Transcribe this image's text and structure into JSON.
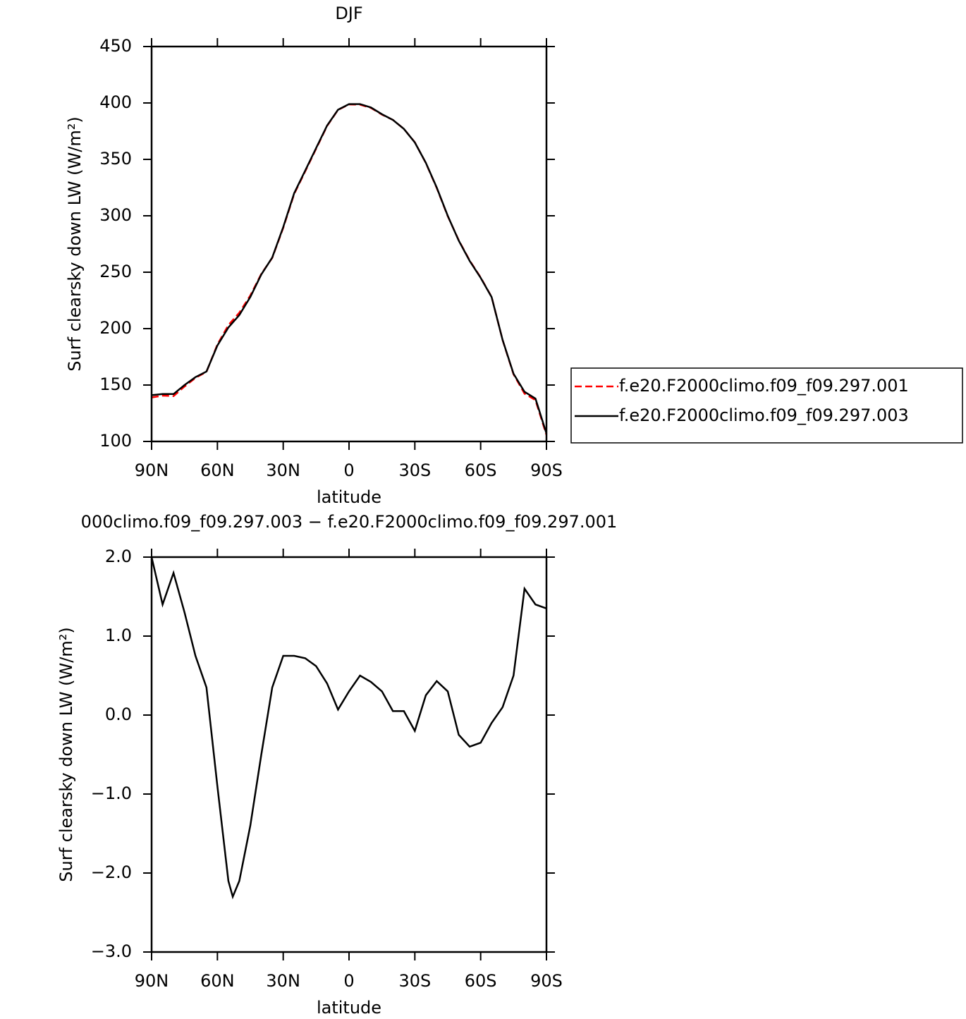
{
  "chart_data": [
    {
      "type": "line",
      "title": "DJF",
      "xlabel": "latitude",
      "ylabel": "Surf clearsky down LW (W/m²)",
      "x": [
        90,
        85,
        80,
        75,
        70,
        65,
        60,
        55,
        50,
        45,
        40,
        35,
        30,
        25,
        20,
        15,
        10,
        5,
        0,
        -5,
        -10,
        -15,
        -20,
        -25,
        -30,
        -35,
        -40,
        -45,
        -50,
        -55,
        -60,
        -65,
        -70,
        -75,
        -80,
        -85,
        -90
      ],
      "series": [
        {
          "name": "f.e20.F2000climo.f09_f09.297.001",
          "color": "#ff0000",
          "line_style": "dashed",
          "values": [
            139,
            140.6,
            140.2,
            148.7,
            156.3,
            161.7,
            185.9,
            203.1,
            214.1,
            229.4,
            248.5,
            262.7,
            289.3,
            319.3,
            339.3,
            359.4,
            379.6,
            393.9,
            398.7,
            398.5,
            395.6,
            389.7,
            385,
            377,
            365.2,
            346.8,
            324.6,
            299.7,
            278.3,
            260.4,
            245.4,
            228.1,
            189.9,
            159.5,
            142.4,
            136.6,
            105.7
          ]
        },
        {
          "name": "f.e20.F2000climo.f09_f09.297.003",
          "color": "#000000",
          "line_style": "solid",
          "values": [
            141,
            142,
            142,
            150,
            157,
            162,
            185,
            201,
            212,
            228,
            248,
            263,
            290,
            320,
            340,
            360,
            380,
            394,
            399,
            399,
            396,
            390,
            385,
            377,
            365,
            347,
            325,
            300,
            278,
            260,
            245,
            228,
            190,
            160,
            144,
            138,
            107
          ]
        }
      ],
      "xlim": [
        90,
        -90
      ],
      "xticks": [
        {
          "value": 90,
          "label": "90N"
        },
        {
          "value": 60,
          "label": "60N"
        },
        {
          "value": 30,
          "label": "30N"
        },
        0,
        {
          "value": -30,
          "label": "30S"
        },
        {
          "value": -60,
          "label": "60S"
        },
        {
          "value": -90,
          "label": "90S"
        }
      ],
      "ylim": [
        100,
        450
      ],
      "yticks": [
        100,
        150,
        200,
        250,
        300,
        350,
        400,
        450
      ],
      "legend": "right"
    },
    {
      "type": "line",
      "title": "000climo.f09_f09.297.003 − f.e20.F2000climo.f09_f09.297.001",
      "xlabel": "latitude",
      "ylabel": "Surf clearsky down LW (W/m²)",
      "x": [
        90,
        85,
        80,
        75,
        70,
        65,
        60,
        55,
        53,
        50,
        45,
        40,
        35,
        30,
        25,
        20,
        15,
        10,
        5,
        0,
        -5,
        -10,
        -15,
        -20,
        -25,
        -30,
        -35,
        -40,
        -45,
        -50,
        -55,
        -60,
        -65,
        -70,
        -75,
        -80,
        -85,
        -90
      ],
      "series": [
        {
          "color": "#000000",
          "line_style": "solid",
          "values": [
            2.0,
            1.4,
            1.8,
            1.3,
            0.75,
            0.35,
            -0.9,
            -2.1,
            -2.3,
            -2.1,
            -1.4,
            -0.5,
            0.35,
            0.75,
            0.75,
            0.72,
            0.62,
            0.4,
            0.07,
            0.3,
            0.5,
            0.42,
            0.3,
            0.05,
            0.05,
            -0.2,
            0.25,
            0.43,
            0.3,
            -0.25,
            -0.4,
            -0.35,
            -0.1,
            0.1,
            0.5,
            1.6,
            1.4,
            1.35
          ]
        }
      ],
      "xlim": [
        90,
        -90
      ],
      "xticks": [
        {
          "value": 90,
          "label": "90N"
        },
        {
          "value": 60,
          "label": "60N"
        },
        {
          "value": 30,
          "label": "30N"
        },
        0,
        {
          "value": -30,
          "label": "30S"
        },
        {
          "value": -60,
          "label": "60S"
        },
        {
          "value": -90,
          "label": "90S"
        }
      ],
      "ylim": [
        -3,
        2
      ],
      "yticks": [
        {
          "value": -3,
          "label": "−3.0"
        },
        {
          "value": -2,
          "label": "−2.0"
        },
        {
          "value": -1,
          "label": "−1.0"
        },
        {
          "value": 0,
          "label": "0.0"
        },
        {
          "value": 1,
          "label": "1.0"
        },
        {
          "value": 2,
          "label": "2.0"
        }
      ]
    }
  ]
}
